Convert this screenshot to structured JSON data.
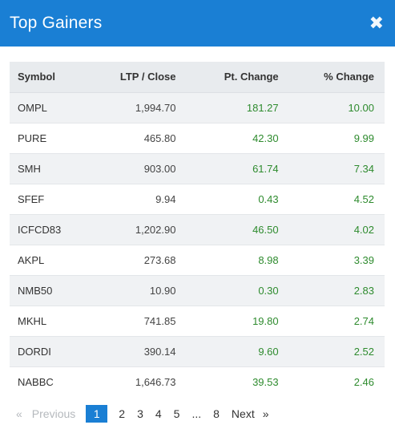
{
  "header": {
    "title": "Top Gainers",
    "close_glyph": "✖"
  },
  "table": {
    "columns": [
      "Symbol",
      "LTP / Close",
      "Pt. Change",
      "% Change"
    ],
    "rows": [
      {
        "symbol": "OMPL",
        "ltp": "1,994.70",
        "pt_change": "181.27",
        "pct_change": "10.00"
      },
      {
        "symbol": "PURE",
        "ltp": "465.80",
        "pt_change": "42.30",
        "pct_change": "9.99"
      },
      {
        "symbol": "SMH",
        "ltp": "903.00",
        "pt_change": "61.74",
        "pct_change": "7.34"
      },
      {
        "symbol": "SFEF",
        "ltp": "9.94",
        "pt_change": "0.43",
        "pct_change": "4.52"
      },
      {
        "symbol": "ICFCD83",
        "ltp": "1,202.90",
        "pt_change": "46.50",
        "pct_change": "4.02"
      },
      {
        "symbol": "AKPL",
        "ltp": "273.68",
        "pt_change": "8.98",
        "pct_change": "3.39"
      },
      {
        "symbol": "NMB50",
        "ltp": "10.90",
        "pt_change": "0.30",
        "pct_change": "2.83"
      },
      {
        "symbol": "MKHL",
        "ltp": "741.85",
        "pt_change": "19.80",
        "pct_change": "2.74"
      },
      {
        "symbol": "DORDI",
        "ltp": "390.14",
        "pt_change": "9.60",
        "pct_change": "2.52"
      },
      {
        "symbol": "NABBC",
        "ltp": "1,646.73",
        "pt_change": "39.53",
        "pct_change": "2.46"
      }
    ]
  },
  "pagination": {
    "prev_arrow": "«",
    "prev_label": "Previous",
    "pages": [
      "1",
      "2",
      "3",
      "4",
      "5"
    ],
    "ellipsis": "...",
    "last_page": "8",
    "next_label": "Next",
    "next_arrow": "»",
    "active_page": "1"
  },
  "colors": {
    "header_bg": "#1a7fd4",
    "positive": "#2e8b2e",
    "active_page_bg": "#1a7fd4"
  }
}
